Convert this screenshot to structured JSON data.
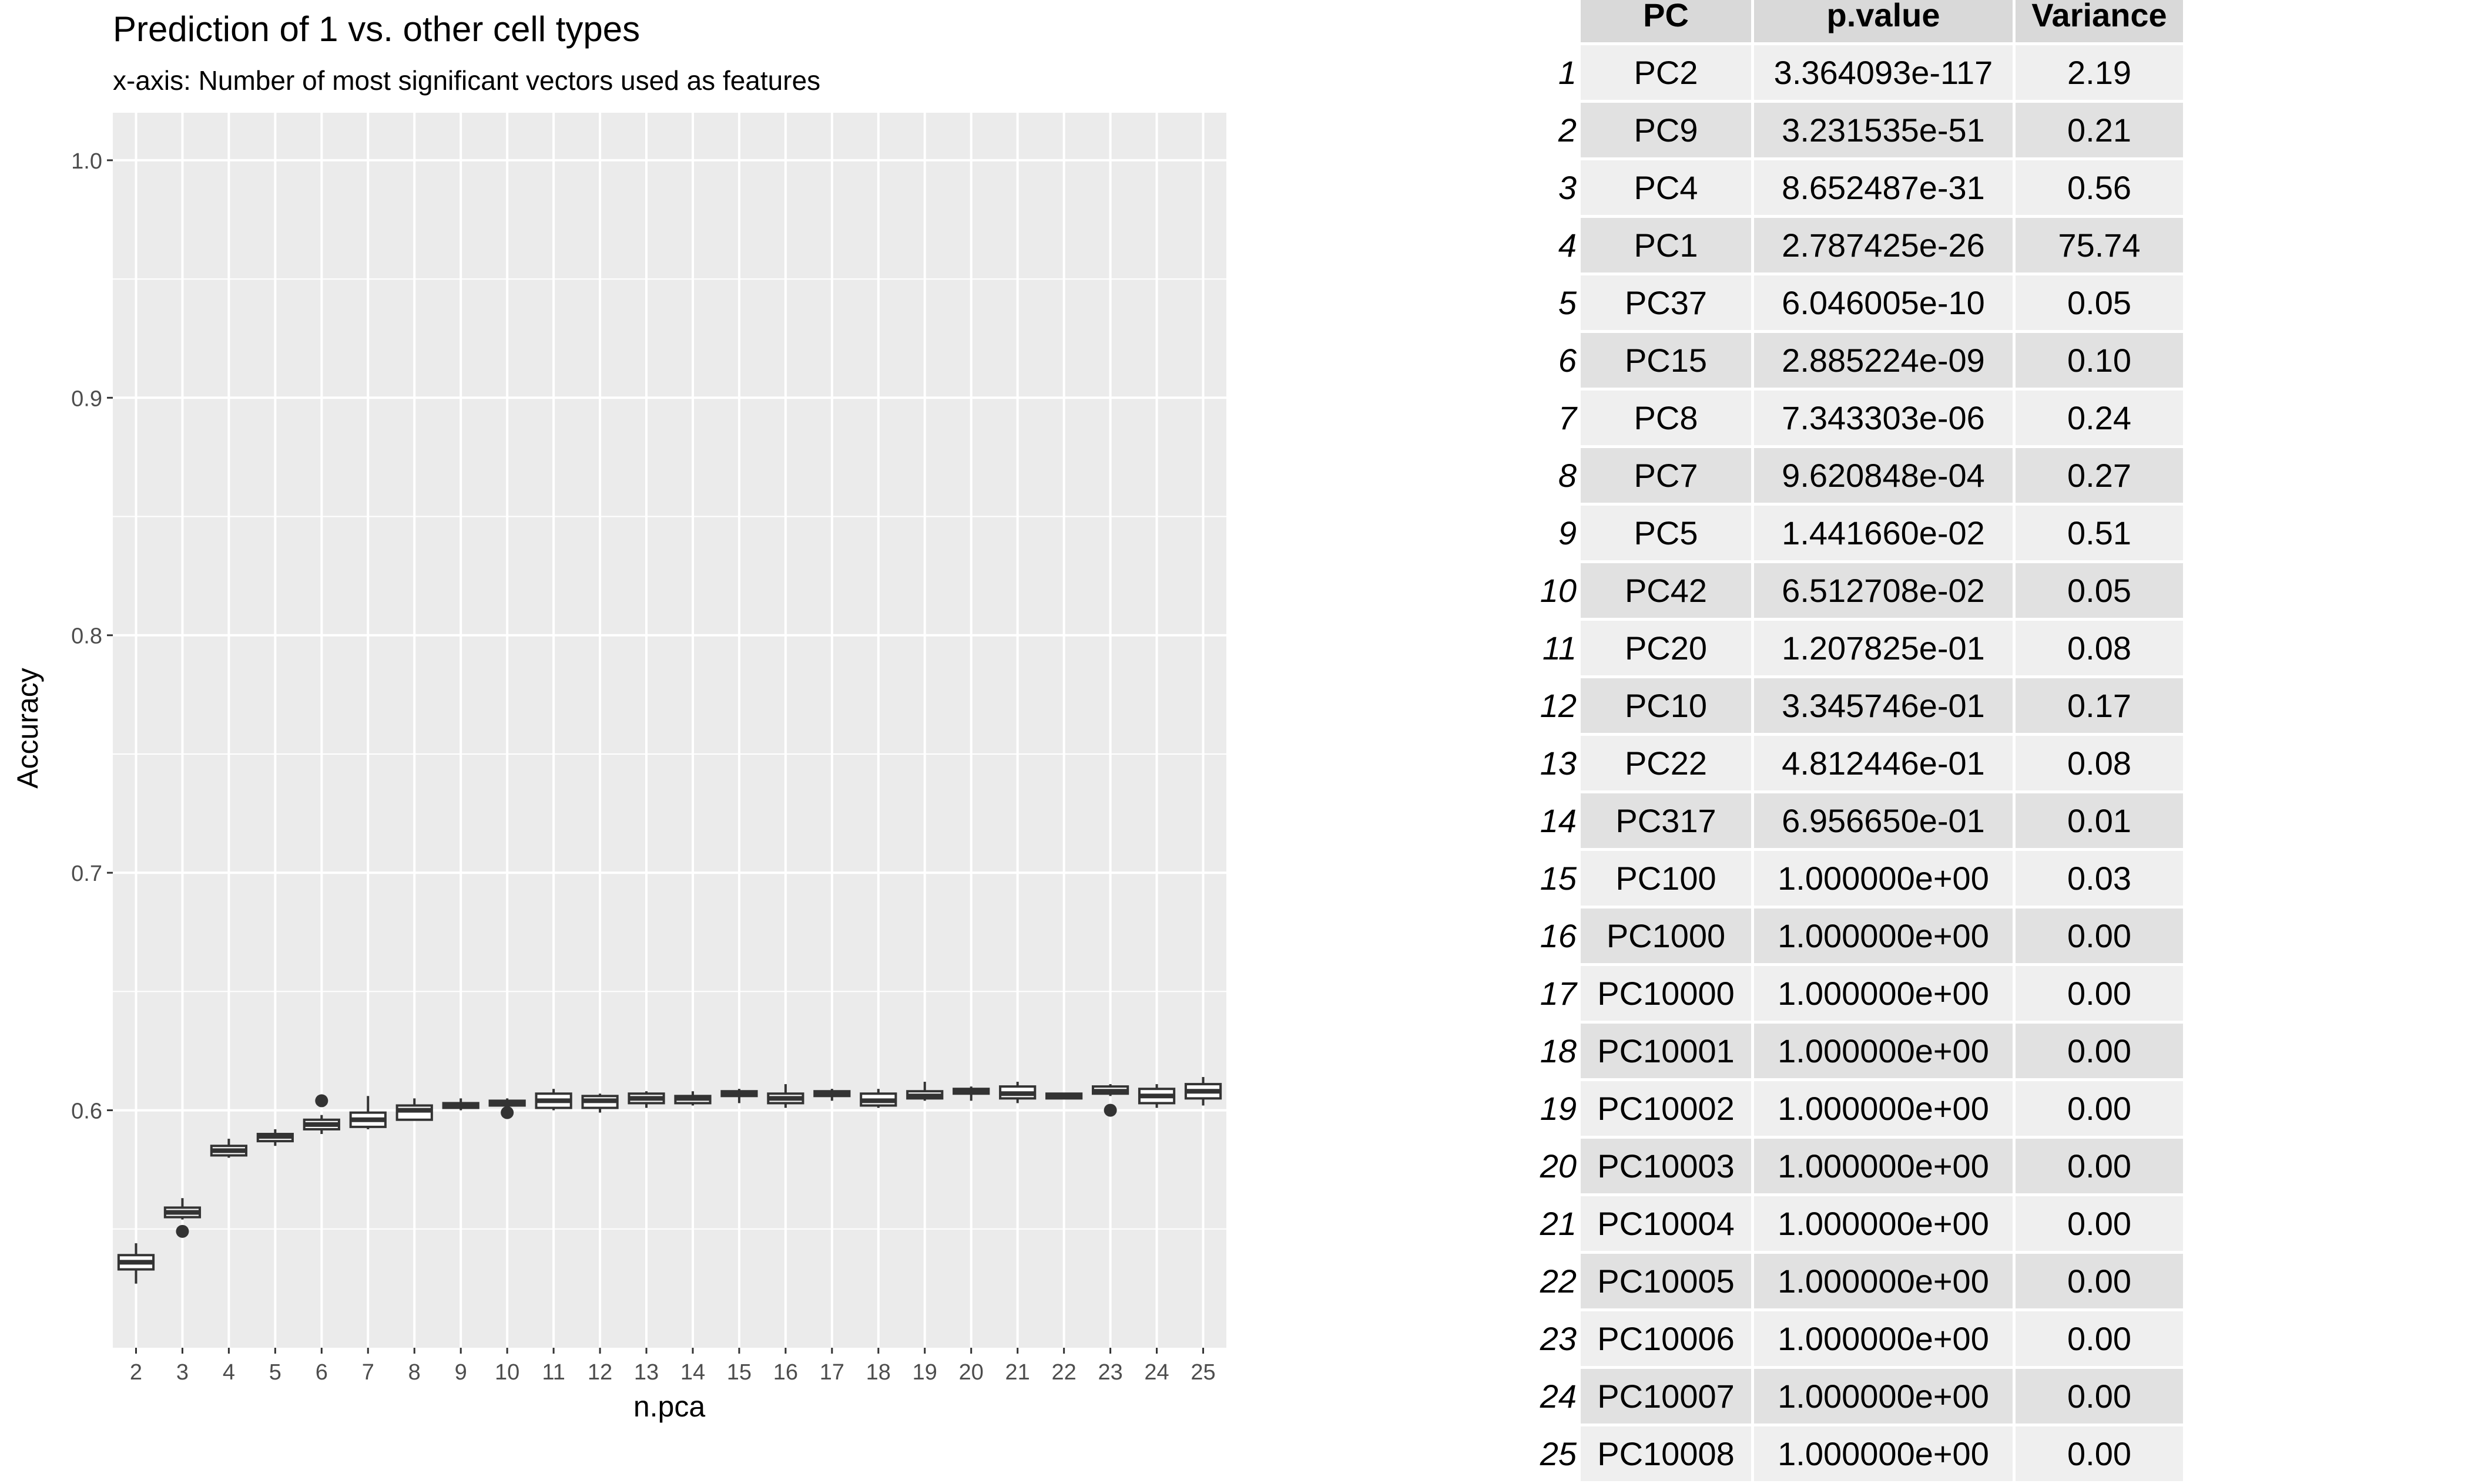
{
  "chart_data": {
    "type": "box",
    "title": "Prediction of 1 vs. other cell types",
    "subtitle": "x-axis: Number of most significant vectors used as features",
    "xlabel": "n.pca",
    "ylabel": "Accuracy",
    "ylim": [
      0.5,
      1.02
    ],
    "yticks": [
      "0.6",
      "0.7",
      "0.8",
      "0.9",
      "1.0"
    ],
    "grid": true,
    "categories": [
      "2",
      "3",
      "4",
      "5",
      "6",
      "7",
      "8",
      "9",
      "10",
      "11",
      "12",
      "13",
      "14",
      "15",
      "16",
      "17",
      "18",
      "19",
      "20",
      "21",
      "22",
      "23",
      "24",
      "25"
    ],
    "boxes": [
      {
        "min": 0.527,
        "q1": 0.533,
        "median": 0.536,
        "q3": 0.539,
        "max": 0.544,
        "outliers": []
      },
      {
        "min": 0.554,
        "q1": 0.555,
        "median": 0.557,
        "q3": 0.559,
        "max": 0.563,
        "outliers": [
          0.549
        ]
      },
      {
        "min": 0.58,
        "q1": 0.581,
        "median": 0.583,
        "q3": 0.585,
        "max": 0.588,
        "outliers": []
      },
      {
        "min": 0.585,
        "q1": 0.587,
        "median": 0.589,
        "q3": 0.59,
        "max": 0.592,
        "outliers": []
      },
      {
        "min": 0.59,
        "q1": 0.592,
        "median": 0.594,
        "q3": 0.596,
        "max": 0.598,
        "outliers": [
          0.604
        ]
      },
      {
        "min": 0.592,
        "q1": 0.593,
        "median": 0.596,
        "q3": 0.599,
        "max": 0.606,
        "outliers": []
      },
      {
        "min": 0.596,
        "q1": 0.596,
        "median": 0.6,
        "q3": 0.602,
        "max": 0.605,
        "outliers": []
      },
      {
        "min": 0.6,
        "q1": 0.601,
        "median": 0.602,
        "q3": 0.603,
        "max": 0.605,
        "outliers": []
      },
      {
        "min": 0.601,
        "q1": 0.602,
        "median": 0.603,
        "q3": 0.604,
        "max": 0.605,
        "outliers": [
          0.599
        ]
      },
      {
        "min": 0.6,
        "q1": 0.601,
        "median": 0.604,
        "q3": 0.607,
        "max": 0.609,
        "outliers": []
      },
      {
        "min": 0.599,
        "q1": 0.601,
        "median": 0.604,
        "q3": 0.606,
        "max": 0.607,
        "outliers": []
      },
      {
        "min": 0.601,
        "q1": 0.603,
        "median": 0.605,
        "q3": 0.607,
        "max": 0.608,
        "outliers": []
      },
      {
        "min": 0.602,
        "q1": 0.603,
        "median": 0.605,
        "q3": 0.606,
        "max": 0.608,
        "outliers": []
      },
      {
        "min": 0.603,
        "q1": 0.606,
        "median": 0.607,
        "q3": 0.608,
        "max": 0.609,
        "outliers": []
      },
      {
        "min": 0.601,
        "q1": 0.603,
        "median": 0.605,
        "q3": 0.607,
        "max": 0.611,
        "outliers": []
      },
      {
        "min": 0.604,
        "q1": 0.606,
        "median": 0.607,
        "q3": 0.608,
        "max": 0.609,
        "outliers": []
      },
      {
        "min": 0.601,
        "q1": 0.602,
        "median": 0.604,
        "q3": 0.607,
        "max": 0.609,
        "outliers": []
      },
      {
        "min": 0.604,
        "q1": 0.605,
        "median": 0.606,
        "q3": 0.608,
        "max": 0.612,
        "outliers": []
      },
      {
        "min": 0.604,
        "q1": 0.607,
        "median": 0.608,
        "q3": 0.609,
        "max": 0.61,
        "outliers": []
      },
      {
        "min": 0.603,
        "q1": 0.605,
        "median": 0.607,
        "q3": 0.61,
        "max": 0.612,
        "outliers": []
      },
      {
        "min": 0.605,
        "q1": 0.605,
        "median": 0.606,
        "q3": 0.607,
        "max": 0.607,
        "outliers": []
      },
      {
        "min": 0.606,
        "q1": 0.607,
        "median": 0.608,
        "q3": 0.61,
        "max": 0.611,
        "outliers": [
          0.6
        ]
      },
      {
        "min": 0.601,
        "q1": 0.603,
        "median": 0.606,
        "q3": 0.609,
        "max": 0.611,
        "outliers": []
      },
      {
        "min": 0.602,
        "q1": 0.605,
        "median": 0.608,
        "q3": 0.611,
        "max": 0.614,
        "outliers": []
      }
    ]
  },
  "table": {
    "headers": [
      "PC",
      "p.value",
      "Variance"
    ],
    "rows": [
      [
        "1",
        "PC2",
        "3.364093e-117",
        "2.19"
      ],
      [
        "2",
        "PC9",
        "3.231535e-51",
        "0.21"
      ],
      [
        "3",
        "PC4",
        "8.652487e-31",
        "0.56"
      ],
      [
        "4",
        "PC1",
        "2.787425e-26",
        "75.74"
      ],
      [
        "5",
        "PC37",
        "6.046005e-10",
        "0.05"
      ],
      [
        "6",
        "PC15",
        "2.885224e-09",
        "0.10"
      ],
      [
        "7",
        "PC8",
        "7.343303e-06",
        "0.24"
      ],
      [
        "8",
        "PC7",
        "9.620848e-04",
        "0.27"
      ],
      [
        "9",
        "PC5",
        "1.441660e-02",
        "0.51"
      ],
      [
        "10",
        "PC42",
        "6.512708e-02",
        "0.05"
      ],
      [
        "11",
        "PC20",
        "1.207825e-01",
        "0.08"
      ],
      [
        "12",
        "PC10",
        "3.345746e-01",
        "0.17"
      ],
      [
        "13",
        "PC22",
        "4.812446e-01",
        "0.08"
      ],
      [
        "14",
        "PC317",
        "6.956650e-01",
        "0.01"
      ],
      [
        "15",
        "PC100",
        "1.000000e+00",
        "0.03"
      ],
      [
        "16",
        "PC1000",
        "1.000000e+00",
        "0.00"
      ],
      [
        "17",
        "PC10000",
        "1.000000e+00",
        "0.00"
      ],
      [
        "18",
        "PC10001",
        "1.000000e+00",
        "0.00"
      ],
      [
        "19",
        "PC10002",
        "1.000000e+00",
        "0.00"
      ],
      [
        "20",
        "PC10003",
        "1.000000e+00",
        "0.00"
      ],
      [
        "21",
        "PC10004",
        "1.000000e+00",
        "0.00"
      ],
      [
        "22",
        "PC10005",
        "1.000000e+00",
        "0.00"
      ],
      [
        "23",
        "PC10006",
        "1.000000e+00",
        "0.00"
      ],
      [
        "24",
        "PC10007",
        "1.000000e+00",
        "0.00"
      ],
      [
        "25",
        "PC10008",
        "1.000000e+00",
        "0.00"
      ]
    ]
  },
  "colors": {
    "panel_bg": "#ebebeb",
    "grid": "#ffffff",
    "box_fill": "#ffffff",
    "box_line": "#333333"
  }
}
